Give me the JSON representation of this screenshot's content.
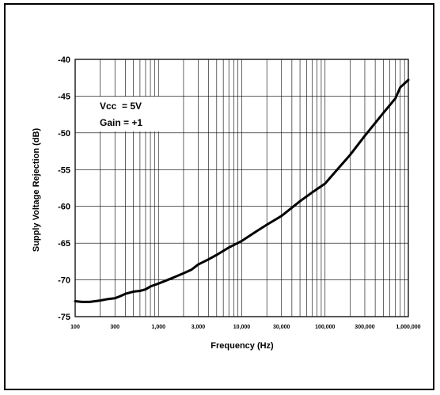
{
  "chart_data": {
    "type": "line",
    "title": "",
    "xlabel": "Frequency (Hz)",
    "ylabel": "Supply Voltage Rejection (dB)",
    "x_scale": "log",
    "xlim": [
      100,
      1000000
    ],
    "ylim": [
      -75,
      -40
    ],
    "grid": true,
    "x_ticks": [
      {
        "value": 100,
        "label": "100"
      },
      {
        "value": 300,
        "label": "300"
      },
      {
        "value": 1000,
        "label": "1,000"
      },
      {
        "value": 3000,
        "label": "3,000"
      },
      {
        "value": 10000,
        "label": "10,000"
      },
      {
        "value": 30000,
        "label": "30,000"
      },
      {
        "value": 100000,
        "label": "100,000"
      },
      {
        "value": 300000,
        "label": "300,000"
      },
      {
        "value": 1000000,
        "label": "1,000,000"
      }
    ],
    "y_ticks": [
      {
        "value": -40,
        "label": "-40"
      },
      {
        "value": -45,
        "label": "-45"
      },
      {
        "value": -50,
        "label": "-50"
      },
      {
        "value": -55,
        "label": "-55"
      },
      {
        "value": -60,
        "label": "-60"
      },
      {
        "value": -65,
        "label": "-65"
      },
      {
        "value": -70,
        "label": "-70"
      },
      {
        "value": -75,
        "label": "-75"
      }
    ],
    "annotations": [
      "Vcc  = 5V",
      "Gain = +1"
    ],
    "series": [
      {
        "color": "#000000",
        "x": [
          100,
          120,
          150,
          200,
          250,
          300,
          350,
          400,
          500,
          600,
          700,
          800,
          1000,
          1500,
          2000,
          2500,
          3000,
          4000,
          5000,
          7000,
          10000,
          15000,
          20000,
          30000,
          50000,
          70000,
          100000,
          150000,
          200000,
          300000,
          500000,
          700000,
          800000,
          1000000
        ],
        "y": [
          -72.9,
          -73.0,
          -73.0,
          -72.8,
          -72.6,
          -72.5,
          -72.2,
          -71.9,
          -71.6,
          -71.5,
          -71.3,
          -70.9,
          -70.5,
          -69.7,
          -69.1,
          -68.6,
          -67.9,
          -67.2,
          -66.6,
          -65.6,
          -64.7,
          -63.4,
          -62.5,
          -61.3,
          -59.3,
          -58.1,
          -56.9,
          -54.6,
          -53.0,
          -50.4,
          -47.3,
          -45.3,
          -43.8,
          -42.8
        ]
      }
    ]
  }
}
